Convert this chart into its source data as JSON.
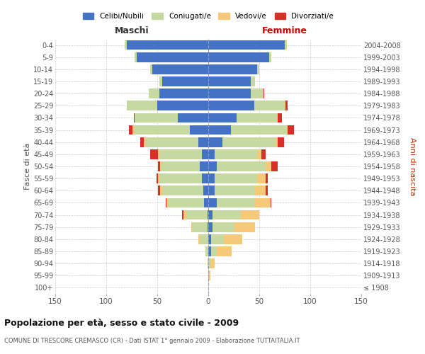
{
  "age_groups": [
    "100+",
    "95-99",
    "90-94",
    "85-89",
    "80-84",
    "75-79",
    "70-74",
    "65-69",
    "60-64",
    "55-59",
    "50-54",
    "45-49",
    "40-44",
    "35-39",
    "30-34",
    "25-29",
    "20-24",
    "15-19",
    "10-14",
    "5-9",
    "0-4"
  ],
  "birth_years": [
    "≤ 1908",
    "1909-1913",
    "1914-1918",
    "1919-1923",
    "1924-1928",
    "1929-1933",
    "1934-1938",
    "1939-1943",
    "1944-1948",
    "1949-1953",
    "1954-1958",
    "1959-1963",
    "1964-1968",
    "1969-1973",
    "1974-1978",
    "1979-1983",
    "1984-1988",
    "1989-1993",
    "1994-1998",
    "1999-2003",
    "2004-2008"
  ],
  "colors": {
    "celibi": "#4472c4",
    "coniugati": "#c5d9a0",
    "vedovi": "#f5c87a",
    "divorziati": "#d73027"
  },
  "males": {
    "celibi": [
      0,
      0,
      0,
      0,
      0,
      1,
      1,
      4,
      5,
      6,
      8,
      6,
      10,
      18,
      30,
      50,
      48,
      45,
      55,
      70,
      80
    ],
    "coniugati": [
      0,
      0,
      1,
      3,
      8,
      14,
      20,
      35,
      40,
      42,
      38,
      42,
      52,
      55,
      42,
      30,
      10,
      3,
      2,
      2,
      2
    ],
    "vedovi": [
      0,
      0,
      0,
      0,
      2,
      2,
      3,
      2,
      2,
      1,
      1,
      1,
      1,
      1,
      0,
      0,
      0,
      0,
      0,
      0,
      0
    ],
    "divorziati": [
      0,
      0,
      0,
      0,
      0,
      0,
      2,
      1,
      2,
      2,
      2,
      8,
      4,
      4,
      1,
      0,
      0,
      0,
      0,
      0,
      0
    ]
  },
  "females": {
    "celibi": [
      0,
      0,
      0,
      3,
      3,
      4,
      4,
      8,
      6,
      6,
      8,
      6,
      14,
      22,
      28,
      45,
      42,
      42,
      48,
      60,
      75
    ],
    "coniugati": [
      0,
      1,
      2,
      5,
      12,
      22,
      28,
      38,
      40,
      42,
      48,
      42,
      52,
      55,
      40,
      30,
      12,
      4,
      2,
      2,
      2
    ],
    "vedovi": [
      0,
      1,
      4,
      15,
      18,
      20,
      18,
      15,
      10,
      8,
      6,
      4,
      2,
      1,
      0,
      1,
      0,
      0,
      0,
      0,
      0
    ],
    "divorziati": [
      0,
      0,
      0,
      0,
      0,
      0,
      0,
      1,
      2,
      2,
      6,
      4,
      6,
      6,
      4,
      2,
      1,
      0,
      0,
      0,
      0
    ]
  },
  "title": "Popolazione per età, sesso e stato civile - 2009",
  "subtitle": "COMUNE DI TRESCORE CREMASCO (CR) - Dati ISTAT 1° gennaio 2009 - Elaborazione TUTTAITALIA.IT",
  "ylabel_left": "Fasce di età",
  "ylabel_right": "Anni di nascita",
  "xlabel_left": "Maschi",
  "xlabel_right": "Femmine",
  "xlim": 150,
  "background_color": "#ffffff",
  "grid_color": "#cccccc"
}
